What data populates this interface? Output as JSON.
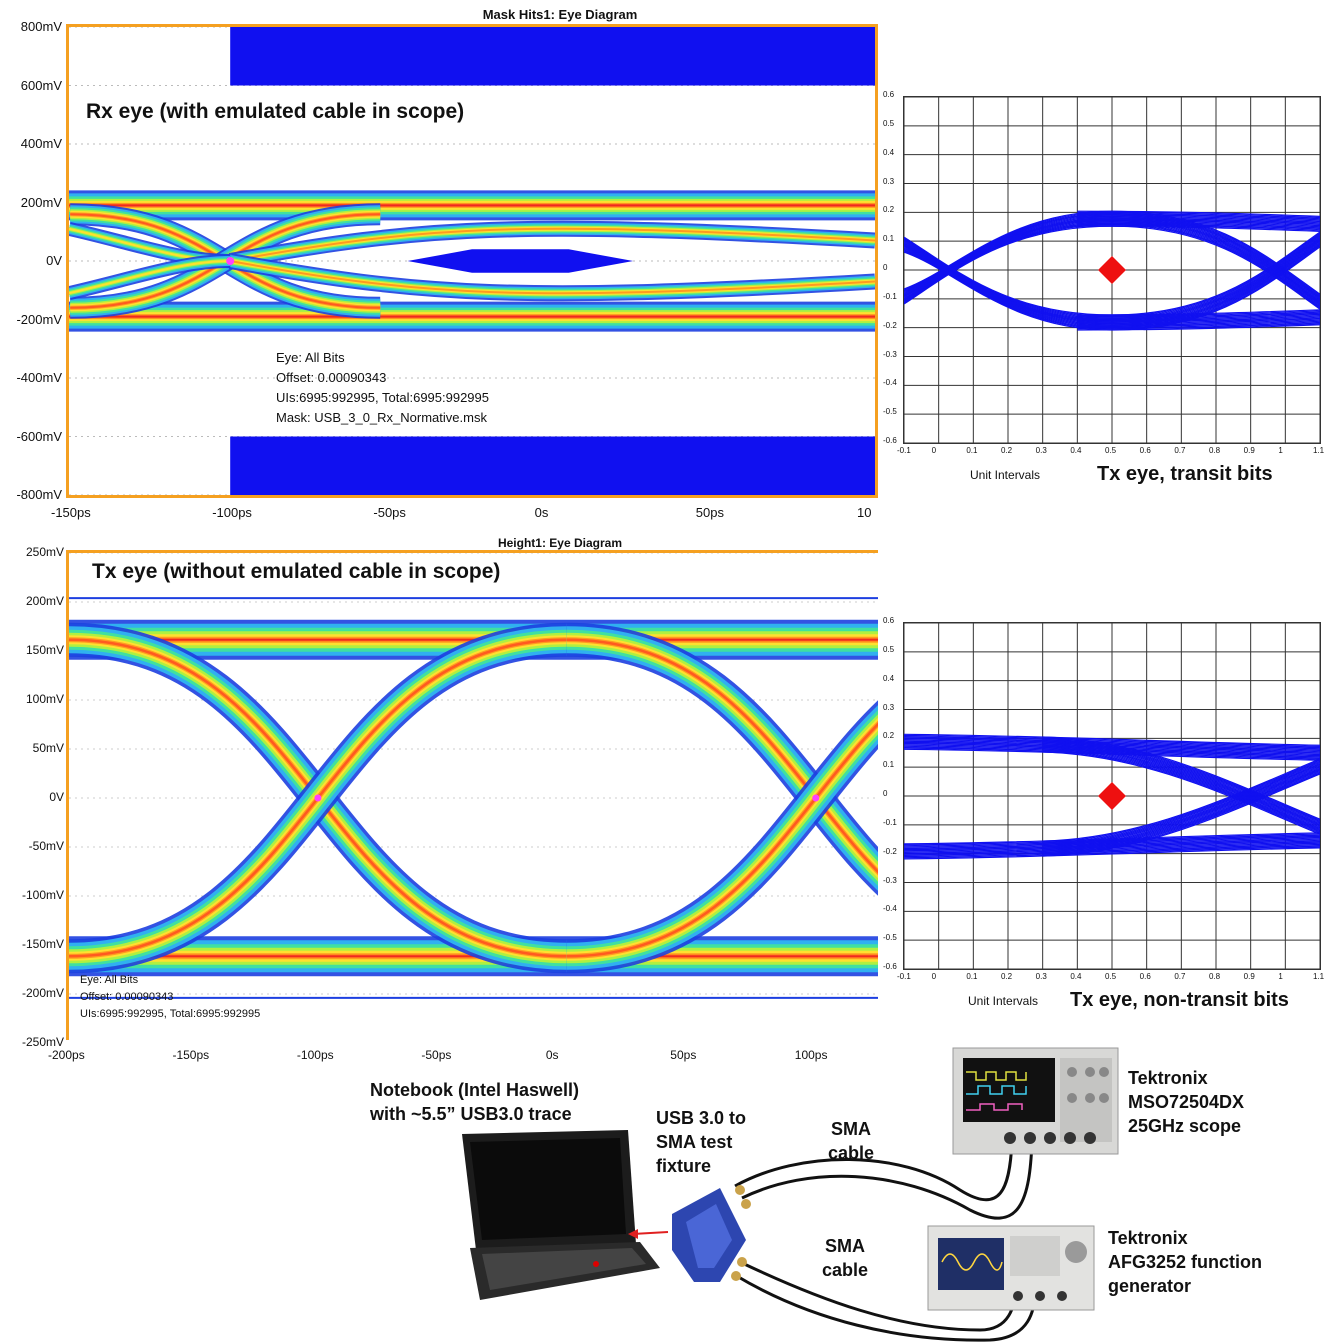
{
  "chart_data": [
    {
      "type": "eye-diagram",
      "title": "Mask Hits1: Eye Diagram",
      "caption": "Rx eye (with emulated cable in scope)",
      "ylabels": [
        "800mV",
        "600mV",
        "400mV",
        "200mV",
        "0V",
        "-200mV",
        "-400mV",
        "-600mV",
        "-800mV"
      ],
      "xlabels": [
        "-150ps",
        "-100ps",
        "-50ps",
        "0s",
        "50ps",
        "10"
      ],
      "ylim": [
        -800,
        800
      ],
      "xlim": [
        -150,
        100
      ],
      "info": [
        "Eye: All Bits",
        "Offset: 0.00090343",
        "UIs:6995:992995, Total:6995:992995",
        "Mask: USB_3_0_Rx_Normative.msk"
      ],
      "eye_amplitude_mv": 200,
      "crossing_x_ps": -100,
      "colors": {
        "mask": "#1010f0",
        "frame": "#f5a020"
      }
    },
    {
      "type": "eye-diagram",
      "title": "Height1: Eye Diagram",
      "caption": "Tx eye (without emulated cable in scope)",
      "ylabels": [
        "250mV",
        "200mV",
        "150mV",
        "100mV",
        "50mV",
        "0V",
        "-50mV",
        "-100mV",
        "-150mV",
        "-200mV",
        "-250mV"
      ],
      "xlabels": [
        "-200ps",
        "-150ps",
        "-100ps",
        "-50ps",
        "0s",
        "50ps",
        "100ps"
      ],
      "ylim": [
        -250,
        250
      ],
      "xlim": [
        -200,
        125
      ],
      "info": [
        "Eye: All Bits",
        "Offset: 0.00090343",
        "UIs:6995:992995, Total:6995:992995"
      ],
      "eye_amplitude_mv": 170,
      "crossing_x_ps": [
        -100,
        100
      ]
    },
    {
      "type": "eye-diagram-grid",
      "caption": "Tx eye, transit bits",
      "xlabel": "Unit Intervals",
      "yticks": [
        "0.6",
        "0.5",
        "0.4",
        "0.3",
        "0.2",
        "0.1",
        "0",
        "-0.1",
        "-0.2",
        "-0.3",
        "-0.4",
        "-0.5",
        "-0.6"
      ],
      "xticks": [
        "-0.1",
        "0",
        "0.1",
        "0.2",
        "0.3",
        "0.4",
        "0.5",
        "0.6",
        "0.7",
        "0.8",
        "0.9",
        "1",
        "1.1"
      ],
      "ylim": [
        -0.6,
        0.6
      ],
      "xlim": [
        -0.1,
        1.1
      ],
      "eye_amplitude": 0.18,
      "marker": {
        "x": 0.5,
        "y": 0
      },
      "colors": {
        "trace": "#1010f0",
        "marker": "#ee1010"
      }
    },
    {
      "type": "eye-diagram-grid",
      "caption": "Tx eye, non-transit bits",
      "xlabel": "Unit Intervals",
      "yticks": [
        "0.6",
        "0.5",
        "0.4",
        "0.3",
        "0.2",
        "0.1",
        "0",
        "-0.1",
        "-0.2",
        "-0.3",
        "-0.4",
        "-0.5",
        "-0.6"
      ],
      "xticks": [
        "-0.1",
        "0",
        "0.1",
        "0.2",
        "0.3",
        "0.4",
        "0.5",
        "0.6",
        "0.7",
        "0.8",
        "0.9",
        "1",
        "1.1"
      ],
      "ylim": [
        -0.6,
        0.6
      ],
      "xlim": [
        -0.1,
        1.1
      ],
      "eye_amplitude": 0.19,
      "marker": {
        "x": 0.5,
        "y": 0
      }
    }
  ],
  "setup": {
    "notebook": "Notebook (Intel Haswell)\nwith ~5.5” USB3.0 trace",
    "fixture": "USB 3.0 to\nSMA test\nfixture",
    "sma1": "SMA\ncable",
    "sma2": "SMA\ncable",
    "scope": "Tektronix\nMSO72504DX\n25GHz scope",
    "afg": "Tektronix\nAFG3252 function\ngenerator"
  }
}
